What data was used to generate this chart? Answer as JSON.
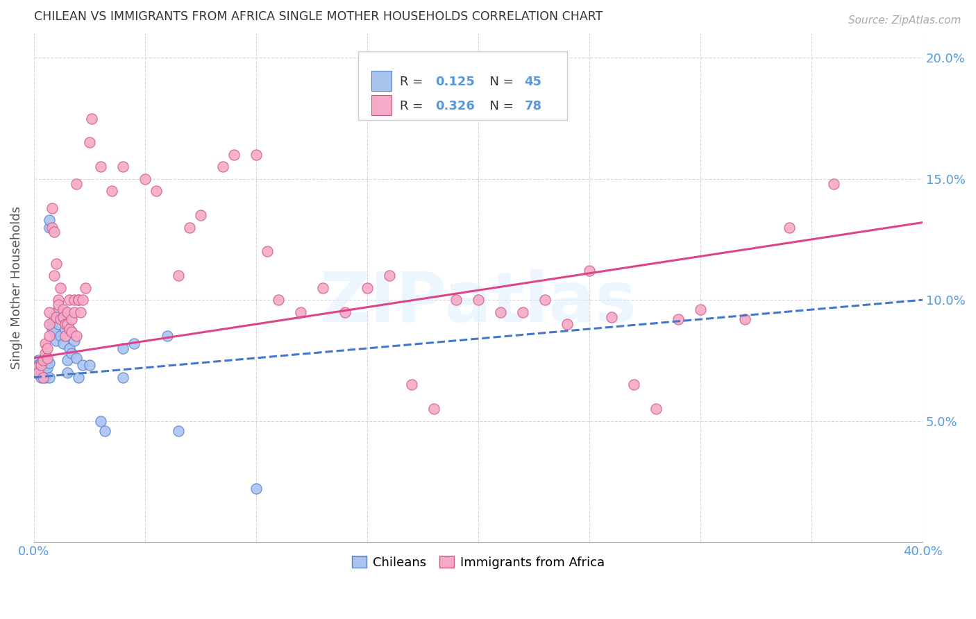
{
  "title": "CHILEAN VS IMMIGRANTS FROM AFRICA SINGLE MOTHER HOUSEHOLDS CORRELATION CHART",
  "source": "Source: ZipAtlas.com",
  "ylabel": "Single Mother Households",
  "xlim": [
    0.0,
    0.4
  ],
  "ylim": [
    0.0,
    0.21
  ],
  "xticks": [
    0.0,
    0.05,
    0.1,
    0.15,
    0.2,
    0.25,
    0.3,
    0.35,
    0.4
  ],
  "yticks": [
    0.0,
    0.05,
    0.1,
    0.15,
    0.2
  ],
  "color_chilean": "#aac4f0",
  "color_africa": "#f5aac8",
  "edge_color_chilean": "#5580cc",
  "edge_color_africa": "#d05888",
  "line_color_chilean": "#4477cc",
  "line_color_africa": "#dd4488",
  "watermark": "ZIPatlas",
  "chilean_points": [
    [
      0.001,
      0.072
    ],
    [
      0.001,
      0.07
    ],
    [
      0.002,
      0.075
    ],
    [
      0.002,
      0.073
    ],
    [
      0.003,
      0.07
    ],
    [
      0.003,
      0.074
    ],
    [
      0.003,
      0.068
    ],
    [
      0.004,
      0.072
    ],
    [
      0.004,
      0.069
    ],
    [
      0.005,
      0.071
    ],
    [
      0.005,
      0.073
    ],
    [
      0.005,
      0.068
    ],
    [
      0.006,
      0.075
    ],
    [
      0.006,
      0.072
    ],
    [
      0.007,
      0.074
    ],
    [
      0.007,
      0.068
    ],
    [
      0.007,
      0.13
    ],
    [
      0.007,
      0.133
    ],
    [
      0.008,
      0.09
    ],
    [
      0.008,
      0.088
    ],
    [
      0.009,
      0.093
    ],
    [
      0.009,
      0.087
    ],
    [
      0.01,
      0.083
    ],
    [
      0.01,
      0.095
    ],
    [
      0.011,
      0.09
    ],
    [
      0.012,
      0.085
    ],
    [
      0.013,
      0.082
    ],
    [
      0.014,
      0.088
    ],
    [
      0.015,
      0.075
    ],
    [
      0.015,
      0.07
    ],
    [
      0.016,
      0.08
    ],
    [
      0.017,
      0.078
    ],
    [
      0.018,
      0.083
    ],
    [
      0.019,
      0.076
    ],
    [
      0.02,
      0.068
    ],
    [
      0.022,
      0.073
    ],
    [
      0.025,
      0.073
    ],
    [
      0.03,
      0.05
    ],
    [
      0.032,
      0.046
    ],
    [
      0.04,
      0.08
    ],
    [
      0.04,
      0.068
    ],
    [
      0.045,
      0.082
    ],
    [
      0.06,
      0.085
    ],
    [
      0.065,
      0.046
    ],
    [
      0.1,
      0.022
    ]
  ],
  "africa_points": [
    [
      0.001,
      0.072
    ],
    [
      0.002,
      0.07
    ],
    [
      0.003,
      0.073
    ],
    [
      0.004,
      0.075
    ],
    [
      0.004,
      0.068
    ],
    [
      0.005,
      0.078
    ],
    [
      0.005,
      0.082
    ],
    [
      0.006,
      0.076
    ],
    [
      0.006,
      0.08
    ],
    [
      0.007,
      0.09
    ],
    [
      0.007,
      0.085
    ],
    [
      0.007,
      0.095
    ],
    [
      0.008,
      0.13
    ],
    [
      0.008,
      0.138
    ],
    [
      0.009,
      0.128
    ],
    [
      0.009,
      0.11
    ],
    [
      0.01,
      0.115
    ],
    [
      0.01,
      0.093
    ],
    [
      0.011,
      0.1
    ],
    [
      0.011,
      0.098
    ],
    [
      0.012,
      0.105
    ],
    [
      0.012,
      0.092
    ],
    [
      0.013,
      0.096
    ],
    [
      0.013,
      0.093
    ],
    [
      0.014,
      0.09
    ],
    [
      0.014,
      0.085
    ],
    [
      0.015,
      0.09
    ],
    [
      0.015,
      0.095
    ],
    [
      0.016,
      0.088
    ],
    [
      0.016,
      0.1
    ],
    [
      0.017,
      0.092
    ],
    [
      0.017,
      0.087
    ],
    [
      0.018,
      0.1
    ],
    [
      0.018,
      0.095
    ],
    [
      0.019,
      0.085
    ],
    [
      0.019,
      0.148
    ],
    [
      0.02,
      0.1
    ],
    [
      0.02,
      0.1
    ],
    [
      0.021,
      0.095
    ],
    [
      0.022,
      0.1
    ],
    [
      0.023,
      0.105
    ],
    [
      0.025,
      0.165
    ],
    [
      0.026,
      0.175
    ],
    [
      0.03,
      0.155
    ],
    [
      0.035,
      0.145
    ],
    [
      0.04,
      0.155
    ],
    [
      0.05,
      0.15
    ],
    [
      0.055,
      0.145
    ],
    [
      0.065,
      0.11
    ],
    [
      0.07,
      0.13
    ],
    [
      0.075,
      0.135
    ],
    [
      0.085,
      0.155
    ],
    [
      0.09,
      0.16
    ],
    [
      0.1,
      0.16
    ],
    [
      0.105,
      0.12
    ],
    [
      0.11,
      0.1
    ],
    [
      0.12,
      0.095
    ],
    [
      0.13,
      0.105
    ],
    [
      0.14,
      0.095
    ],
    [
      0.15,
      0.105
    ],
    [
      0.16,
      0.11
    ],
    [
      0.17,
      0.065
    ],
    [
      0.18,
      0.055
    ],
    [
      0.19,
      0.1
    ],
    [
      0.2,
      0.1
    ],
    [
      0.21,
      0.095
    ],
    [
      0.22,
      0.095
    ],
    [
      0.23,
      0.1
    ],
    [
      0.24,
      0.09
    ],
    [
      0.25,
      0.112
    ],
    [
      0.26,
      0.093
    ],
    [
      0.27,
      0.065
    ],
    [
      0.28,
      0.055
    ],
    [
      0.29,
      0.092
    ],
    [
      0.3,
      0.096
    ],
    [
      0.32,
      0.092
    ],
    [
      0.34,
      0.13
    ],
    [
      0.36,
      0.148
    ]
  ]
}
